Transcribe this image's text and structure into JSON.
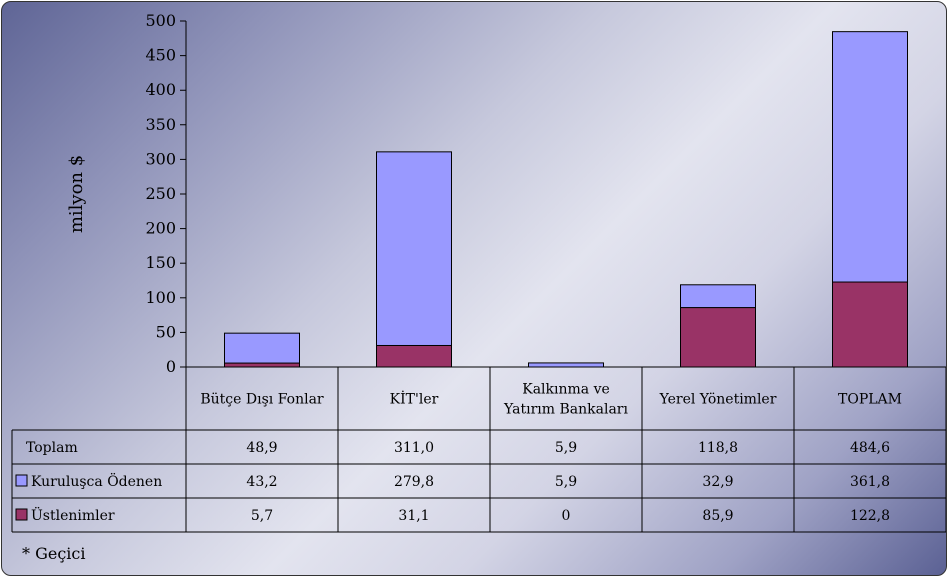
{
  "chart_data": {
    "type": "bar",
    "stacked": true,
    "ylabel": "milyon $",
    "ylim": [
      0,
      500
    ],
    "yticks": [
      0,
      50,
      100,
      150,
      200,
      250,
      300,
      350,
      400,
      450,
      500
    ],
    "categories": [
      [
        "Bütçe Dışı Fonlar"
      ],
      [
        "KİT'ler"
      ],
      [
        "Kalkınma ve",
        "Yatırım Bankaları"
      ],
      [
        "Yerel Yönetimler"
      ],
      [
        "TOPLAM"
      ]
    ],
    "series": [
      {
        "name": "Üstlenimler",
        "color": "#993366",
        "values": [
          5.7,
          31.1,
          0,
          85.9,
          122.8
        ]
      },
      {
        "name": "Kuruluşca Ödenen",
        "color": "#9999ff",
        "values": [
          43.2,
          279.8,
          5.9,
          32.9,
          361.8
        ]
      }
    ],
    "table": {
      "rows": [
        {
          "label": "Toplam",
          "marker": null,
          "cells": [
            "48,9",
            "311,0",
            "5,9",
            "118,8",
            "484,6"
          ]
        },
        {
          "label": "Kuruluşca Ödenen",
          "marker": "#9999ff",
          "cells": [
            "43,2",
            "279,8",
            "5,9",
            "32,9",
            "361,8"
          ]
        },
        {
          "label": "Üstlenimler",
          "marker": "#993366",
          "cells": [
            "5,7",
            "31,1",
            "0",
            "85,9",
            "122,8"
          ]
        }
      ]
    },
    "footnote": "* Geçici"
  }
}
